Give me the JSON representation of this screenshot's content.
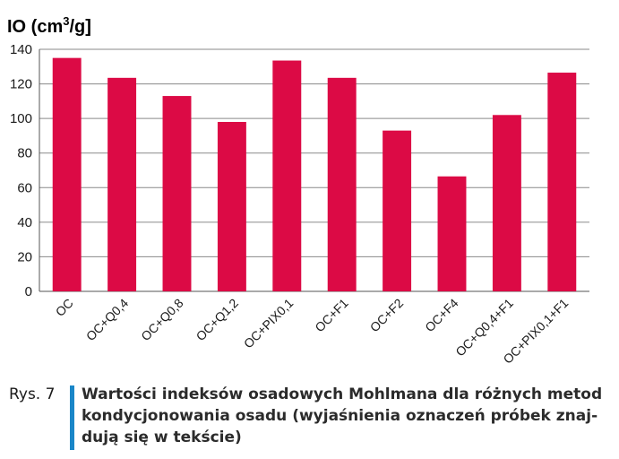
{
  "chart_data": {
    "type": "bar",
    "ylabel_main": "IO (cm",
    "ylabel_sup": "3",
    "ylabel_tail": "/g]",
    "categories": [
      "OC",
      "OC+Q0,4",
      "OC+Q0,8",
      "OC+Q1,2",
      "OC+PIX0,1",
      "OC+F1",
      "OC+F2",
      "OC+F4",
      "OC+Q0,4+F1",
      "OC+PIX0,1+F1"
    ],
    "values": [
      135,
      123.5,
      113,
      98,
      133.5,
      123.5,
      93,
      66.5,
      102,
      126.5
    ],
    "ylim": [
      0,
      140
    ],
    "yticks": [
      0,
      20,
      40,
      60,
      80,
      100,
      120,
      140
    ],
    "grid": true,
    "bar_color": "#dc0a45"
  },
  "caption": {
    "label": "Rys. 7",
    "text": "Wartości indeksów osadowych Mohlmana dla różnych metod kondycjonowania osadu (wyjaśnienia oznaczeń próbek znaj-dują się w tekście)",
    "accent_color": "#1a86c8"
  }
}
